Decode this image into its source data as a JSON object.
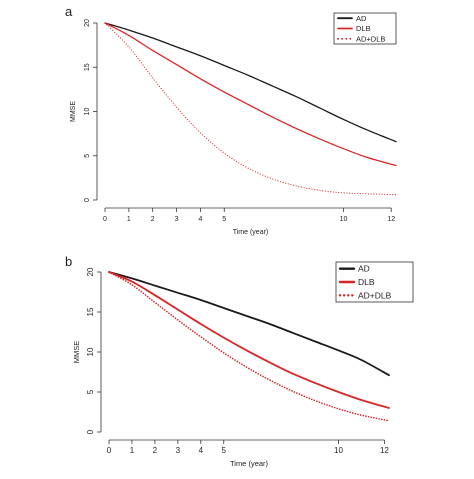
{
  "colors": {
    "axis": "#333333",
    "AD": "#1a1a1a",
    "DLB": "#d62728",
    "ADDLB": "#d62728"
  },
  "chart_data": [
    {
      "panel_label": "a",
      "type": "line",
      "xlabel": "Time (year)",
      "ylabel": "MMSE",
      "xlim": [
        0,
        12.2
      ],
      "ylim": [
        0,
        20
      ],
      "xticks": [
        0,
        1,
        2,
        3,
        4,
        5,
        10,
        12
      ],
      "yticks": [
        0,
        5,
        10,
        15,
        20
      ],
      "legend_position": "top-right",
      "grid": false,
      "series": [
        {
          "name": "AD",
          "style": "solid",
          "color": "#1a1a1a",
          "x": [
            0,
            1,
            2,
            3,
            4,
            5,
            6,
            7,
            8,
            9,
            10,
            11,
            12.2
          ],
          "y": [
            20,
            19.2,
            18.3,
            17.3,
            16.3,
            15.2,
            14.1,
            12.9,
            11.7,
            10.4,
            9.1,
            7.9,
            6.6
          ]
        },
        {
          "name": "DLB",
          "style": "solid",
          "color": "#d62728",
          "x": [
            0,
            1,
            2,
            3,
            4,
            5,
            6,
            7,
            8,
            9,
            10,
            11,
            12.2
          ],
          "y": [
            20,
            18.6,
            16.9,
            15.3,
            13.7,
            12.2,
            10.8,
            9.4,
            8.1,
            6.9,
            5.8,
            4.8,
            3.9
          ]
        },
        {
          "name": "AD+DLB",
          "style": "dotted",
          "color": "#d62728",
          "x": [
            0,
            1,
            2,
            3,
            4,
            5,
            6,
            7,
            8,
            9,
            10,
            11,
            12.2
          ],
          "y": [
            20,
            17.3,
            13.8,
            10.5,
            7.6,
            5.3,
            3.6,
            2.4,
            1.6,
            1.1,
            0.8,
            0.7,
            0.6
          ]
        }
      ]
    },
    {
      "panel_label": "b",
      "type": "line",
      "xlabel": "Time (year)",
      "ylabel": "MMSE",
      "xlim": [
        0,
        12.2
      ],
      "ylim": [
        0,
        20
      ],
      "xticks": [
        0,
        1,
        2,
        3,
        4,
        5,
        10,
        12
      ],
      "yticks": [
        0,
        5,
        10,
        15,
        20
      ],
      "legend_position": "top-right",
      "grid": false,
      "series": [
        {
          "name": "AD",
          "style": "solid",
          "color": "#1a1a1a",
          "x": [
            0,
            1,
            2,
            3,
            4,
            5,
            6,
            7,
            8,
            9,
            10,
            11,
            12.2
          ],
          "y": [
            20,
            19.2,
            18.3,
            17.4,
            16.5,
            15.5,
            14.5,
            13.5,
            12.4,
            11.3,
            10.2,
            9.0,
            7.1
          ]
        },
        {
          "name": "DLB",
          "style": "solid",
          "color": "#d62728",
          "x": [
            0,
            1,
            2,
            3,
            4,
            5,
            6,
            7,
            8,
            9,
            10,
            11,
            12.2
          ],
          "y": [
            20,
            18.8,
            17.1,
            15.3,
            13.5,
            11.8,
            10.2,
            8.7,
            7.3,
            6.1,
            5.0,
            4.0,
            3.0
          ]
        },
        {
          "name": "AD+DLB",
          "style": "dotted",
          "color": "#d62728",
          "x": [
            0,
            1,
            2,
            3,
            4,
            5,
            6,
            7,
            8,
            9,
            10,
            11,
            12.2
          ],
          "y": [
            20,
            18.4,
            16.2,
            14.0,
            11.9,
            9.9,
            8.1,
            6.5,
            5.1,
            3.9,
            2.9,
            2.1,
            1.4
          ]
        }
      ]
    }
  ]
}
